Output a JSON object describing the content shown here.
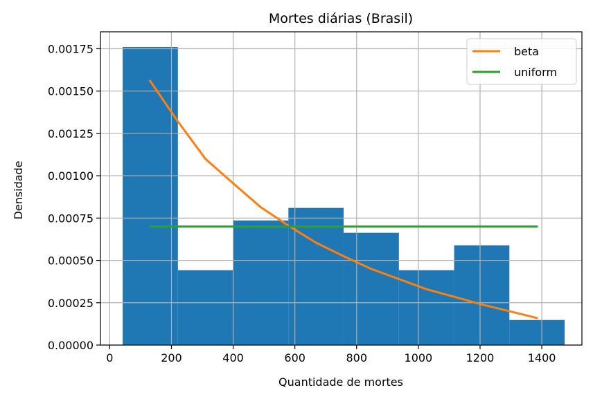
{
  "chart_data": {
    "type": "bar",
    "title": "Mortes diárias (Brasil)",
    "xlabel": "Quantidade de mortes",
    "ylabel": "Densidade",
    "xlim": [
      -30,
      1530
    ],
    "ylim": [
      0,
      0.00185
    ],
    "grid": true,
    "legend_position": "top-right",
    "x_ticks": [
      0,
      200,
      400,
      600,
      800,
      1000,
      1200,
      1400
    ],
    "y_ticks": [
      0,
      0.00025,
      0.0005,
      0.00075,
      0.001,
      0.00125,
      0.0015,
      0.00175
    ],
    "x_tick_labels": [
      "0",
      "200",
      "400",
      "600",
      "800",
      "1000",
      "1200",
      "1400"
    ],
    "y_tick_labels": [
      "0.00000",
      "0.00025",
      "0.00050",
      "0.00075",
      "0.00100",
      "0.00125",
      "0.00150",
      "0.00175"
    ],
    "histogram": {
      "color": "#1f77b4",
      "bins": [
        {
          "x0": 42,
          "x1": 221,
          "density": 0.00176
        },
        {
          "x0": 221,
          "x1": 400,
          "density": 0.000442
        },
        {
          "x0": 400,
          "x1": 579,
          "density": 0.000736
        },
        {
          "x0": 579,
          "x1": 758,
          "density": 0.00081
        },
        {
          "x0": 758,
          "x1": 937,
          "density": 0.000663
        },
        {
          "x0": 937,
          "x1": 1116,
          "density": 0.000442
        },
        {
          "x0": 1116,
          "x1": 1295,
          "density": 0.000589
        },
        {
          "x0": 1295,
          "x1": 1474,
          "density": 0.000148
        }
      ]
    },
    "series": [
      {
        "name": "beta",
        "color": "#ff7f0e",
        "x": [
          131,
          221,
          310,
          400,
          489,
          579,
          668,
          758,
          847,
          937,
          1026,
          1116,
          1205,
          1295,
          1384
        ],
        "y": [
          0.00156,
          0.00132,
          0.0011,
          0.000955,
          0.000815,
          0.000705,
          0.000605,
          0.000525,
          0.00045,
          0.00039,
          0.00033,
          0.000285,
          0.00024,
          0.0002,
          0.00016
        ]
      },
      {
        "name": "uniform",
        "color": "#2ca02c",
        "x": [
          131,
          1384
        ],
        "y": [
          0.0007,
          0.0007
        ]
      }
    ]
  }
}
